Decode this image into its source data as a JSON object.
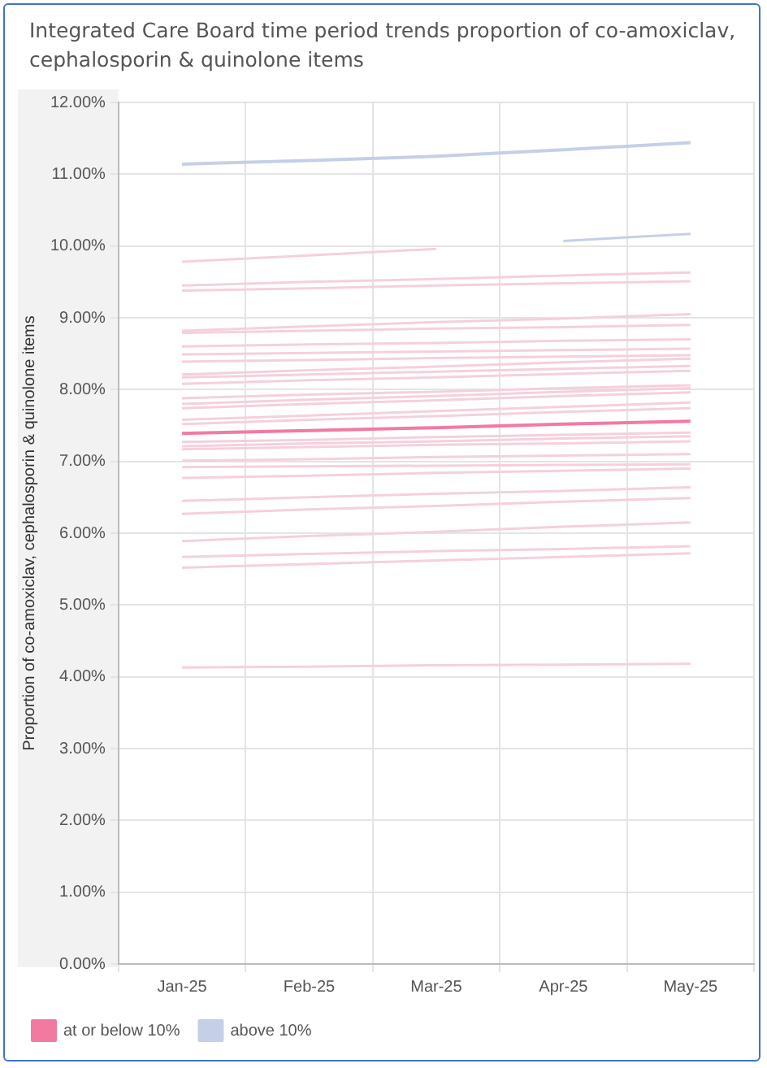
{
  "chart_data": {
    "type": "line",
    "title": "Integrated Care Board time period trends proportion of co-amoxiclav, cephalosporin & quinolone items",
    "ylabel": "Proportion of co-amoxiclav, cephalosporin & quinolone items",
    "categories": [
      "Jan-25",
      "Feb-25",
      "Mar-25",
      "Apr-25",
      "May-25"
    ],
    "ylim": [
      0,
      12
    ],
    "yticks": [
      {
        "value": 0,
        "label": "0.00%"
      },
      {
        "value": 1,
        "label": "1.00%"
      },
      {
        "value": 2,
        "label": "2.00%"
      },
      {
        "value": 3,
        "label": "3.00%"
      },
      {
        "value": 4,
        "label": "4.00%"
      },
      {
        "value": 5,
        "label": "5.00%"
      },
      {
        "value": 6,
        "label": "6.00%"
      },
      {
        "value": 7,
        "label": "7.00%"
      },
      {
        "value": 8,
        "label": "8.00%"
      },
      {
        "value": 9,
        "label": "9.00%"
      },
      {
        "value": 10,
        "label": "10.00%"
      },
      {
        "value": 11,
        "label": "11.00%"
      },
      {
        "value": 12,
        "label": "12.00%"
      }
    ],
    "grid": true,
    "legend": "bottom",
    "marker": "none",
    "line_style": "solid",
    "series": [
      {
        "name": "at or below 10%",
        "color": "#f27aa0",
        "values": [
          7.39,
          7.43,
          7.47,
          7.52,
          7.56
        ]
      },
      {
        "name": "above 10%",
        "color": "#c5d0e6",
        "values": [
          11.14,
          11.19,
          11.25,
          11.34,
          11.44
        ]
      },
      {
        "color": "#c5d0e6",
        "values": [
          null,
          null,
          null,
          10.07,
          10.17
        ]
      },
      {
        "color": "#f5d0dc",
        "values": [
          9.78,
          9.87,
          9.96,
          null,
          null
        ]
      },
      {
        "color": "#f5d0dc",
        "values": [
          9.45,
          9.5,
          9.54,
          9.59,
          9.63
        ]
      },
      {
        "color": "#f5d0dc",
        "values": [
          9.38,
          9.41,
          9.45,
          9.48,
          9.51
        ]
      },
      {
        "color": "#f5d0dc",
        "values": [
          8.82,
          8.88,
          8.94,
          8.99,
          9.05
        ]
      },
      {
        "color": "#f5d0dc",
        "values": [
          8.79,
          8.82,
          8.85,
          8.87,
          8.9
        ]
      },
      {
        "color": "#f5d0dc",
        "values": [
          8.6,
          8.63,
          8.65,
          8.68,
          8.7
        ]
      },
      {
        "color": "#f5d0dc",
        "values": [
          8.49,
          8.51,
          8.53,
          8.55,
          8.57
        ]
      },
      {
        "color": "#f5d0dc",
        "values": [
          8.39,
          8.41,
          8.44,
          8.46,
          8.48
        ]
      },
      {
        "color": "#f5d0dc",
        "values": [
          8.21,
          8.27,
          8.32,
          8.38,
          8.43
        ]
      },
      {
        "color": "#f5d0dc",
        "values": [
          8.17,
          8.21,
          8.25,
          8.29,
          8.33
        ]
      },
      {
        "color": "#f5d0dc",
        "values": [
          8.08,
          8.13,
          8.17,
          8.22,
          8.26
        ]
      },
      {
        "color": "#f5d0dc",
        "values": [
          7.88,
          7.93,
          7.97,
          8.02,
          8.06
        ]
      },
      {
        "color": "#f5d0dc",
        "values": [
          7.8,
          7.86,
          7.91,
          7.97,
          8.02
        ]
      },
      {
        "color": "#f5d0dc",
        "values": [
          7.74,
          7.8,
          7.85,
          7.91,
          7.96
        ]
      },
      {
        "color": "#f5d0dc",
        "values": [
          7.58,
          7.64,
          7.7,
          7.76,
          7.82
        ]
      },
      {
        "color": "#f5d0dc",
        "values": [
          7.52,
          7.58,
          7.63,
          7.69,
          7.74
        ]
      },
      {
        "color": "#f5d0dc",
        "values": [
          7.27,
          7.3,
          7.34,
          7.37,
          7.4
        ]
      },
      {
        "color": "#f5d0dc",
        "values": [
          7.21,
          7.25,
          7.28,
          7.32,
          7.35
        ]
      },
      {
        "color": "#f5d0dc",
        "values": [
          7.17,
          7.2,
          7.23,
          7.25,
          7.28
        ]
      },
      {
        "color": "#f5d0dc",
        "values": [
          7.01,
          7.03,
          7.06,
          7.08,
          7.1
        ]
      },
      {
        "color": "#f5d0dc",
        "values": [
          6.92,
          6.93,
          6.94,
          6.95,
          6.96
        ]
      },
      {
        "color": "#f5d0dc",
        "values": [
          6.77,
          6.8,
          6.84,
          6.87,
          6.9
        ]
      },
      {
        "color": "#f5d0dc",
        "values": [
          6.45,
          6.5,
          6.55,
          6.59,
          6.64
        ]
      },
      {
        "color": "#f5d0dc",
        "values": [
          6.27,
          6.33,
          6.38,
          6.44,
          6.49
        ]
      },
      {
        "color": "#f5d0dc",
        "values": [
          5.89,
          5.96,
          6.02,
          6.09,
          6.15
        ]
      },
      {
        "color": "#f5d0dc",
        "values": [
          5.67,
          5.71,
          5.75,
          5.78,
          5.82
        ]
      },
      {
        "color": "#f5d0dc",
        "values": [
          5.52,
          5.57,
          5.62,
          5.67,
          5.72
        ]
      },
      {
        "color": "#f5d0dc",
        "values": [
          4.13,
          4.14,
          4.16,
          4.17,
          4.18
        ]
      }
    ]
  }
}
